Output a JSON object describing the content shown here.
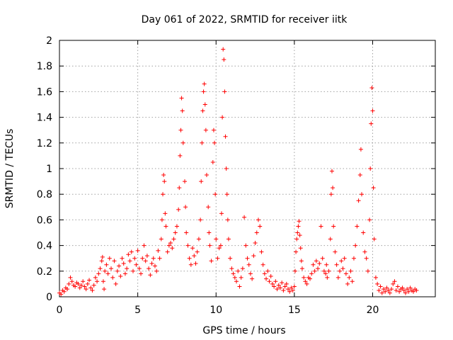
{
  "chart_data": {
    "type": "scatter",
    "title": "Day 061 of 2022, SRMTID for receiver iitk",
    "xlabel": "GPS time / hours",
    "ylabel": "SRMTID / TECUs",
    "xlim": [
      0,
      24
    ],
    "ylim": [
      0,
      2
    ],
    "x_ticks": [
      0,
      5,
      10,
      15,
      20
    ],
    "x_tick_labels": [
      "0",
      "5",
      "10",
      "15",
      "20"
    ],
    "y_ticks": [
      0,
      0.2,
      0.4,
      0.6,
      0.8,
      1,
      1.2,
      1.4,
      1.6,
      1.8,
      2
    ],
    "y_tick_labels": [
      "0",
      "0.2",
      "0.4",
      "0.6",
      "0.8",
      "1",
      "1.2",
      "1.4",
      "1.6",
      "1.8",
      "2"
    ],
    "grid": true,
    "marker": "plus",
    "color": "#ff0000",
    "series": [
      {
        "name": "SRMTID",
        "points": [
          [
            0.0,
            0.03
          ],
          [
            0.1,
            0.02
          ],
          [
            0.2,
            0.05
          ],
          [
            0.3,
            0.04
          ],
          [
            0.4,
            0.07
          ],
          [
            0.5,
            0.06
          ],
          [
            0.6,
            0.1
          ],
          [
            0.7,
            0.15
          ],
          [
            0.8,
            0.12
          ],
          [
            0.9,
            0.09
          ],
          [
            1.0,
            0.08
          ],
          [
            1.1,
            0.11
          ],
          [
            1.2,
            0.1
          ],
          [
            1.3,
            0.07
          ],
          [
            1.4,
            0.09
          ],
          [
            1.5,
            0.12
          ],
          [
            1.6,
            0.08
          ],
          [
            1.7,
            0.06
          ],
          [
            1.8,
            0.1
          ],
          [
            1.9,
            0.13
          ],
          [
            2.0,
            0.07
          ],
          [
            2.1,
            0.05
          ],
          [
            2.2,
            0.09
          ],
          [
            2.3,
            0.15
          ],
          [
            2.4,
            0.12
          ],
          [
            2.5,
            0.18
          ],
          [
            2.6,
            0.22
          ],
          [
            2.7,
            0.28
          ],
          [
            2.75,
            0.31
          ],
          [
            2.8,
            0.12
          ],
          [
            2.85,
            0.06
          ],
          [
            2.9,
            0.2
          ],
          [
            3.0,
            0.25
          ],
          [
            3.1,
            0.18
          ],
          [
            3.2,
            0.3
          ],
          [
            3.3,
            0.22
          ],
          [
            3.4,
            0.15
          ],
          [
            3.5,
            0.28
          ],
          [
            3.6,
            0.1
          ],
          [
            3.7,
            0.2
          ],
          [
            3.8,
            0.24
          ],
          [
            3.9,
            0.16
          ],
          [
            4.0,
            0.3
          ],
          [
            4.1,
            0.26
          ],
          [
            4.2,
            0.18
          ],
          [
            4.3,
            0.22
          ],
          [
            4.4,
            0.33
          ],
          [
            4.5,
            0.28
          ],
          [
            4.6,
            0.35
          ],
          [
            4.7,
            0.2
          ],
          [
            4.8,
            0.3
          ],
          [
            4.9,
            0.25
          ],
          [
            5.0,
            0.36
          ],
          [
            5.1,
            0.22
          ],
          [
            5.2,
            0.18
          ],
          [
            5.3,
            0.3
          ],
          [
            5.4,
            0.4
          ],
          [
            5.5,
            0.28
          ],
          [
            5.6,
            0.32
          ],
          [
            5.7,
            0.22
          ],
          [
            5.8,
            0.17
          ],
          [
            5.9,
            0.26
          ],
          [
            6.0,
            0.3
          ],
          [
            6.1,
            0.24
          ],
          [
            6.2,
            0.2
          ],
          [
            6.3,
            0.36
          ],
          [
            6.4,
            0.3
          ],
          [
            6.5,
            0.45
          ],
          [
            6.55,
            0.6
          ],
          [
            6.6,
            0.8
          ],
          [
            6.65,
            0.95
          ],
          [
            6.7,
            0.9
          ],
          [
            6.75,
            0.65
          ],
          [
            6.8,
            0.55
          ],
          [
            6.9,
            0.35
          ],
          [
            7.0,
            0.4
          ],
          [
            7.1,
            0.42
          ],
          [
            7.2,
            0.38
          ],
          [
            7.3,
            0.45
          ],
          [
            7.4,
            0.5
          ],
          [
            7.5,
            0.55
          ],
          [
            7.6,
            0.68
          ],
          [
            7.65,
            0.85
          ],
          [
            7.7,
            1.1
          ],
          [
            7.75,
            1.3
          ],
          [
            7.8,
            1.55
          ],
          [
            7.85,
            1.45
          ],
          [
            7.9,
            1.2
          ],
          [
            8.0,
            0.9
          ],
          [
            8.05,
            0.7
          ],
          [
            8.1,
            0.5
          ],
          [
            8.2,
            0.4
          ],
          [
            8.3,
            0.3
          ],
          [
            8.4,
            0.25
          ],
          [
            8.5,
            0.38
          ],
          [
            8.6,
            0.32
          ],
          [
            8.7,
            0.26
          ],
          [
            8.8,
            0.35
          ],
          [
            8.9,
            0.45
          ],
          [
            9.0,
            0.6
          ],
          [
            9.05,
            0.9
          ],
          [
            9.1,
            1.2
          ],
          [
            9.15,
            1.45
          ],
          [
            9.2,
            1.6
          ],
          [
            9.25,
            1.66
          ],
          [
            9.3,
            1.5
          ],
          [
            9.35,
            1.3
          ],
          [
            9.4,
            0.95
          ],
          [
            9.5,
            0.7
          ],
          [
            9.55,
            0.5
          ],
          [
            9.6,
            0.4
          ],
          [
            9.7,
            0.28
          ],
          [
            9.8,
            1.05
          ],
          [
            9.85,
            1.3
          ],
          [
            9.9,
            1.2
          ],
          [
            9.95,
            0.8
          ],
          [
            10.0,
            0.45
          ],
          [
            10.1,
            0.3
          ],
          [
            10.2,
            0.38
          ],
          [
            10.3,
            0.4
          ],
          [
            10.35,
            0.65
          ],
          [
            10.4,
            1.4
          ],
          [
            10.45,
            1.93
          ],
          [
            10.5,
            1.85
          ],
          [
            10.55,
            1.6
          ],
          [
            10.6,
            1.25
          ],
          [
            10.65,
            1.0
          ],
          [
            10.7,
            0.8
          ],
          [
            10.75,
            0.6
          ],
          [
            10.8,
            0.45
          ],
          [
            10.9,
            0.3
          ],
          [
            11.0,
            0.22
          ],
          [
            11.1,
            0.18
          ],
          [
            11.2,
            0.15
          ],
          [
            11.3,
            0.12
          ],
          [
            11.4,
            0.2
          ],
          [
            11.5,
            0.08
          ],
          [
            11.6,
            0.15
          ],
          [
            11.7,
            0.22
          ],
          [
            11.8,
            0.62
          ],
          [
            11.9,
            0.4
          ],
          [
            12.0,
            0.3
          ],
          [
            12.1,
            0.25
          ],
          [
            12.2,
            0.18
          ],
          [
            12.3,
            0.14
          ],
          [
            12.4,
            0.32
          ],
          [
            12.5,
            0.42
          ],
          [
            12.6,
            0.5
          ],
          [
            12.7,
            0.6
          ],
          [
            12.8,
            0.55
          ],
          [
            12.9,
            0.35
          ],
          [
            13.0,
            0.25
          ],
          [
            13.1,
            0.18
          ],
          [
            13.2,
            0.14
          ],
          [
            13.3,
            0.2
          ],
          [
            13.4,
            0.12
          ],
          [
            13.5,
            0.16
          ],
          [
            13.6,
            0.1
          ],
          [
            13.7,
            0.08
          ],
          [
            13.8,
            0.12
          ],
          [
            13.9,
            0.06
          ],
          [
            14.0,
            0.09
          ],
          [
            14.1,
            0.07
          ],
          [
            14.2,
            0.11
          ],
          [
            14.3,
            0.05
          ],
          [
            14.4,
            0.08
          ],
          [
            14.5,
            0.1
          ],
          [
            14.6,
            0.06
          ],
          [
            14.7,
            0.04
          ],
          [
            14.8,
            0.07
          ],
          [
            14.9,
            0.05
          ],
          [
            15.0,
            0.08
          ],
          [
            15.05,
            0.2
          ],
          [
            15.1,
            0.35
          ],
          [
            15.15,
            0.45
          ],
          [
            15.2,
            0.5
          ],
          [
            15.25,
            0.55
          ],
          [
            15.3,
            0.59
          ],
          [
            15.35,
            0.48
          ],
          [
            15.4,
            0.38
          ],
          [
            15.45,
            0.28
          ],
          [
            15.5,
            0.22
          ],
          [
            15.6,
            0.15
          ],
          [
            15.7,
            0.12
          ],
          [
            15.8,
            0.1
          ],
          [
            15.9,
            0.15
          ],
          [
            16.0,
            0.14
          ],
          [
            16.1,
            0.18
          ],
          [
            16.2,
            0.25
          ],
          [
            16.3,
            0.2
          ],
          [
            16.4,
            0.28
          ],
          [
            16.5,
            0.22
          ],
          [
            16.6,
            0.26
          ],
          [
            16.7,
            0.55
          ],
          [
            16.8,
            0.3
          ],
          [
            16.9,
            0.2
          ],
          [
            17.0,
            0.18
          ],
          [
            17.05,
            0.25
          ],
          [
            17.1,
            0.15
          ],
          [
            17.2,
            0.2
          ],
          [
            17.3,
            0.45
          ],
          [
            17.35,
            0.8
          ],
          [
            17.4,
            0.98
          ],
          [
            17.45,
            0.85
          ],
          [
            17.5,
            0.55
          ],
          [
            17.6,
            0.35
          ],
          [
            17.7,
            0.25
          ],
          [
            17.8,
            0.15
          ],
          [
            17.9,
            0.2
          ],
          [
            18.0,
            0.28
          ],
          [
            18.1,
            0.22
          ],
          [
            18.2,
            0.3
          ],
          [
            18.3,
            0.18
          ],
          [
            18.4,
            0.1
          ],
          [
            18.5,
            0.15
          ],
          [
            18.6,
            0.2
          ],
          [
            18.7,
            0.12
          ],
          [
            18.8,
            0.3
          ],
          [
            18.9,
            0.4
          ],
          [
            19.0,
            0.55
          ],
          [
            19.1,
            0.75
          ],
          [
            19.2,
            0.95
          ],
          [
            19.25,
            1.15
          ],
          [
            19.3,
            0.8
          ],
          [
            19.4,
            0.5
          ],
          [
            19.5,
            0.35
          ],
          [
            19.6,
            0.3
          ],
          [
            19.7,
            0.2
          ],
          [
            19.8,
            0.6
          ],
          [
            19.85,
            1.0
          ],
          [
            19.9,
            1.35
          ],
          [
            19.95,
            1.63
          ],
          [
            20.0,
            1.45
          ],
          [
            20.05,
            0.85
          ],
          [
            20.1,
            0.45
          ],
          [
            20.2,
            0.15
          ],
          [
            20.3,
            0.1
          ],
          [
            20.4,
            0.05
          ],
          [
            20.5,
            0.08
          ],
          [
            20.6,
            0.03
          ],
          [
            20.7,
            0.06
          ],
          [
            20.8,
            0.04
          ],
          [
            20.9,
            0.07
          ],
          [
            21.0,
            0.05
          ],
          [
            21.1,
            0.03
          ],
          [
            21.2,
            0.06
          ],
          [
            21.3,
            0.1
          ],
          [
            21.4,
            0.12
          ],
          [
            21.5,
            0.05
          ],
          [
            21.6,
            0.08
          ],
          [
            21.7,
            0.04
          ],
          [
            21.8,
            0.06
          ],
          [
            21.9,
            0.07
          ],
          [
            22.0,
            0.05
          ],
          [
            22.1,
            0.03
          ],
          [
            22.2,
            0.06
          ],
          [
            22.3,
            0.04
          ],
          [
            22.4,
            0.07
          ],
          [
            22.5,
            0.05
          ],
          [
            22.6,
            0.04
          ],
          [
            22.7,
            0.06
          ],
          [
            22.8,
            0.05
          ]
        ]
      }
    ]
  }
}
